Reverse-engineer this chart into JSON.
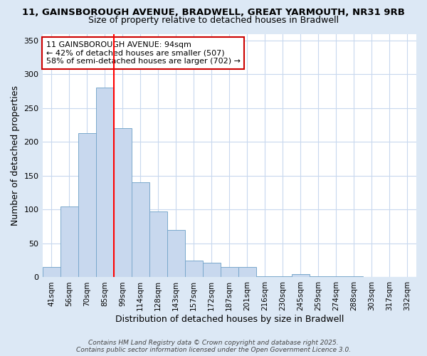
{
  "title_line1": "11, GAINSBOROUGH AVENUE, BRADWELL, GREAT YARMOUTH, NR31 9RB",
  "title_line2": "Size of property relative to detached houses in Bradwell",
  "xlabel": "Distribution of detached houses by size in Bradwell",
  "ylabel": "Number of detached properties",
  "bar_labels": [
    "41sqm",
    "56sqm",
    "70sqm",
    "85sqm",
    "99sqm",
    "114sqm",
    "128sqm",
    "143sqm",
    "157sqm",
    "172sqm",
    "187sqm",
    "201sqm",
    "216sqm",
    "230sqm",
    "245sqm",
    "259sqm",
    "274sqm",
    "288sqm",
    "303sqm",
    "317sqm",
    "332sqm"
  ],
  "bar_values": [
    15,
    105,
    213,
    280,
    220,
    140,
    97,
    70,
    25,
    22,
    15,
    15,
    2,
    2,
    5,
    2,
    2,
    2,
    0,
    0,
    0
  ],
  "bar_color": "#c8d8ee",
  "bar_edge_color": "#7aa8cc",
  "red_line_x": 4.0,
  "annotation_text_line1": "11 GAINSBOROUGH AVENUE: 94sqm",
  "annotation_text_line2": "← 42% of detached houses are smaller (507)",
  "annotation_text_line3": "58% of semi-detached houses are larger (702) →",
  "annotation_box_color": "#ffffff",
  "annotation_border_color": "#cc0000",
  "ylim": [
    0,
    360
  ],
  "yticks": [
    0,
    50,
    100,
    150,
    200,
    250,
    300,
    350
  ],
  "footer_text": "Contains HM Land Registry data © Crown copyright and database right 2025.\nContains public sector information licensed under the Open Government Licence 3.0.",
  "outer_background_color": "#dce8f5",
  "plot_background_color": "#ffffff",
  "grid_color": "#c8d8ee",
  "title_fontsize": 9.5,
  "subtitle_fontsize": 9,
  "xlabel_fontsize": 9,
  "ylabel_fontsize": 9,
  "annotation_fontsize": 8,
  "footer_fontsize": 6.5
}
